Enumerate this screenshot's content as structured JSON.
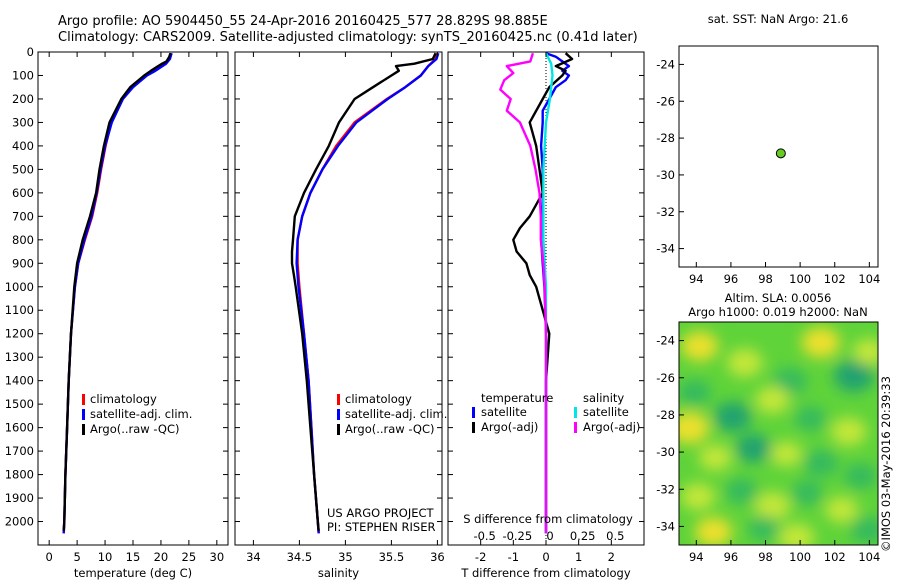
{
  "header": {
    "line1": "Argo profile: AO 5904450_55 24-Apr-2016 20160425_577 28.829S 98.885E",
    "line2": "Climatology: CARS2009. Satellite-adjusted climatology: synTS_20160425.nc (0.41d later)"
  },
  "side_stamp": "©IMOS 03-May-2016 20:39:33",
  "colors": {
    "climatology": "#ff0000",
    "satellite": "#0000ff",
    "argo": "#000000",
    "sal_satellite": "#00e5e5",
    "sal_argo": "#ff00ff",
    "marker": "#66cc22"
  },
  "chart_data": [
    {
      "id": "temperature",
      "type": "line",
      "xlabel": "temperature (deg C)",
      "ylabel": "",
      "xlim": [
        -2,
        32
      ],
      "ylim": [
        2100,
        0
      ],
      "xticks": [
        0,
        5,
        10,
        15,
        20,
        25,
        30
      ],
      "yticks": [
        0,
        100,
        200,
        300,
        400,
        500,
        600,
        700,
        800,
        900,
        1000,
        1100,
        1200,
        1300,
        1400,
        1500,
        1600,
        1700,
        1800,
        1900,
        2000
      ],
      "legend": [
        "climatology",
        "satellite-adj. clim.",
        "Argo(..raw -QC)"
      ],
      "series": [
        {
          "name": "climatology",
          "depth": [
            5,
            30,
            50,
            80,
            100,
            150,
            200,
            300,
            400,
            500,
            600,
            700,
            800,
            900,
            1000,
            1200,
            1400,
            1600,
            1800,
            2000,
            2050
          ],
          "values": [
            21.8,
            21.5,
            20.8,
            18.9,
            17.4,
            14.9,
            13.1,
            11.1,
            10.1,
            9.3,
            8.6,
            7.7,
            6.4,
            5.2,
            4.6,
            3.9,
            3.5,
            3.2,
            2.9,
            2.7,
            2.6
          ]
        },
        {
          "name": "satellite-adj. clim.",
          "depth": [
            5,
            30,
            50,
            80,
            100,
            150,
            200,
            300,
            400,
            500,
            600,
            700,
            800,
            900,
            1000,
            1200,
            1400,
            1600,
            1800,
            2000,
            2050
          ],
          "values": [
            21.9,
            21.6,
            20.9,
            19.0,
            17.5,
            15.0,
            13.2,
            11.2,
            10.0,
            9.2,
            8.5,
            7.6,
            6.3,
            5.2,
            4.6,
            3.9,
            3.5,
            3.2,
            2.9,
            2.7,
            2.6
          ]
        },
        {
          "name": "Argo(..raw -QC)",
          "depth": [
            5,
            20,
            40,
            50,
            60,
            80,
            100,
            150,
            200,
            300,
            400,
            500,
            600,
            700,
            800,
            900,
            1000,
            1200,
            1400,
            1600,
            1800,
            2000,
            2040
          ],
          "values": [
            21.7,
            21.5,
            21.0,
            20.2,
            19.5,
            18.2,
            17.0,
            14.5,
            12.9,
            10.8,
            9.8,
            9.0,
            8.4,
            7.3,
            6.0,
            5.0,
            4.5,
            3.9,
            3.5,
            3.2,
            2.9,
            2.7,
            2.6
          ]
        }
      ]
    },
    {
      "id": "salinity",
      "type": "line",
      "xlabel": "salinity",
      "ylabel": "",
      "xlim": [
        33.8,
        36.05
      ],
      "ylim": [
        2100,
        0
      ],
      "xticks": [
        34,
        34.5,
        35,
        35.5,
        36
      ],
      "xticklabels": [
        "34",
        "34.5",
        "35",
        "35.5",
        "36"
      ],
      "legend": [
        "climatology",
        "satellite-adj. clim.",
        "Argo(..raw -QC)"
      ],
      "annotation": [
        "US ARGO PROJECT",
        "PI: STEPHEN RISER"
      ],
      "series": [
        {
          "name": "climatology",
          "depth": [
            5,
            30,
            60,
            100,
            150,
            200,
            300,
            400,
            500,
            600,
            700,
            800,
            900,
            1000,
            1200,
            1400,
            1600,
            1800,
            2000,
            2050
          ],
          "values": [
            36.0,
            35.98,
            35.9,
            35.82,
            35.65,
            35.45,
            35.1,
            34.9,
            34.75,
            34.62,
            34.53,
            34.48,
            34.48,
            34.5,
            34.55,
            34.6,
            34.63,
            34.66,
            34.7,
            34.71
          ]
        },
        {
          "name": "satellite-adj. clim.",
          "depth": [
            5,
            30,
            60,
            100,
            150,
            200,
            300,
            400,
            500,
            600,
            700,
            800,
            900,
            1000,
            1200,
            1400,
            1600,
            1800,
            2000,
            2050
          ],
          "values": [
            36.01,
            35.99,
            35.9,
            35.82,
            35.65,
            35.46,
            35.12,
            34.92,
            34.75,
            34.62,
            34.53,
            34.48,
            34.47,
            34.49,
            34.55,
            34.6,
            34.63,
            34.66,
            34.7,
            34.71
          ]
        },
        {
          "name": "Argo(..raw -QC)",
          "depth": [
            5,
            30,
            50,
            60,
            80,
            100,
            150,
            200,
            300,
            400,
            500,
            600,
            700,
            800,
            850,
            900,
            950,
            1000,
            1200,
            1400,
            1600,
            1800,
            2000,
            2040
          ],
          "values": [
            35.98,
            35.95,
            35.75,
            35.55,
            35.58,
            35.5,
            35.3,
            35.1,
            34.93,
            34.82,
            34.68,
            34.55,
            34.45,
            34.43,
            34.42,
            34.42,
            34.44,
            34.46,
            34.53,
            34.58,
            34.62,
            34.66,
            34.7,
            34.71
          ]
        }
      ]
    },
    {
      "id": "differences",
      "type": "line",
      "xlabel": "T difference from climatology",
      "xlabel_top": "S difference from climatology",
      "xlim": [
        -3,
        3
      ],
      "ylim": [
        2100,
        0
      ],
      "xticks": [
        -2,
        -1,
        0,
        1,
        2
      ],
      "s_ticklabels": [
        "-0.5",
        "-0.25",
        "0",
        "0.25",
        "0.5"
      ],
      "legend": {
        "temperature_title": "temperature",
        "salinity_title": "salinity",
        "items": [
          "satellite",
          "Argo(-adj)",
          "satellite",
          "Argo(-adj)"
        ]
      },
      "series": [
        {
          "name": "temperature satellite",
          "depth": [
            5,
            20,
            40,
            60,
            80,
            100,
            120,
            150,
            200,
            250,
            300,
            400,
            500,
            600,
            700,
            800,
            900,
            1000,
            1200,
            1400,
            1600,
            1800,
            2000,
            2050
          ],
          "values": [
            0.0,
            0.3,
            0.5,
            0.7,
            0.5,
            0.7,
            0.6,
            0.3,
            0.1,
            -0.1,
            -0.1,
            -0.15,
            -0.1,
            -0.1,
            -0.1,
            -0.15,
            -0.1,
            -0.05,
            0.0,
            0.0,
            0.0,
            0.0,
            0.0,
            0.0
          ]
        },
        {
          "name": "temperature Argo(-adj)",
          "depth": [
            5,
            30,
            60,
            80,
            100,
            150,
            200,
            300,
            400,
            500,
            600,
            700,
            750,
            800,
            850,
            900,
            950,
            1000,
            1200,
            1400,
            1600,
            1800,
            2000,
            2050
          ],
          "values": [
            0.6,
            0.8,
            0.3,
            0.6,
            0.5,
            0.1,
            -0.1,
            -0.5,
            -0.3,
            -0.2,
            -0.1,
            -0.5,
            -0.8,
            -1.0,
            -0.9,
            -0.6,
            -0.5,
            -0.3,
            0.1,
            0.0,
            0.0,
            0.0,
            0.0,
            0.0
          ]
        },
        {
          "name": "salinity satellite",
          "depth": [
            5,
            50,
            100,
            200,
            300,
            400,
            500,
            600,
            700,
            800,
            900,
            1000,
            1200,
            1400,
            1600,
            1800,
            2000,
            2050
          ],
          "values": [
            0.0,
            0.04,
            0.05,
            0.03,
            0.0,
            -0.01,
            -0.02,
            -0.02,
            -0.02,
            -0.02,
            -0.01,
            0.0,
            0.0,
            0.0,
            0.0,
            0.0,
            0.0,
            0.0
          ]
        },
        {
          "name": "salinity Argo(-adj)",
          "depth": [
            5,
            40,
            60,
            90,
            120,
            160,
            200,
            250,
            300,
            400,
            500,
            600,
            700,
            800,
            900,
            1000,
            1200,
            1400,
            1600,
            1800,
            2000,
            2050
          ],
          "values": [
            -0.1,
            -0.12,
            -0.3,
            -0.25,
            -0.32,
            -0.35,
            -0.27,
            -0.3,
            -0.2,
            -0.12,
            -0.08,
            -0.05,
            -0.04,
            -0.04,
            -0.02,
            -0.01,
            0.0,
            0.0,
            0.0,
            0.0,
            0.0,
            0.0
          ]
        }
      ]
    },
    {
      "id": "position",
      "type": "scatter",
      "title": "sat. SST: NaN Argo: 21.6",
      "xlim": [
        93,
        104.5
      ],
      "ylim": [
        -35,
        -23
      ],
      "xticks": [
        94,
        96,
        98,
        100,
        102,
        104
      ],
      "yticks": [
        -24,
        -26,
        -28,
        -30,
        -32,
        -34
      ],
      "points": [
        {
          "x": 98.885,
          "y": -28.829
        }
      ]
    },
    {
      "id": "sla_map",
      "type": "heatmap",
      "title_line1": "Altim. SLA: 0.0056",
      "title_line2": "Argo h1000: 0.019 h2000: NaN",
      "xlim": [
        93,
        104.5
      ],
      "ylim": [
        -35,
        -23
      ],
      "xticks": [
        94,
        96,
        98,
        100,
        102,
        104
      ],
      "yticks": [
        -24,
        -26,
        -28,
        -30,
        -32,
        -34
      ],
      "base_color": "#5fd33a",
      "blobs": [
        {
          "x": 94.2,
          "y": -24.3,
          "v": 0.8
        },
        {
          "x": 96.8,
          "y": -25.2,
          "v": 0.7
        },
        {
          "x": 99.4,
          "y": -26.2,
          "v": -0.6
        },
        {
          "x": 101.2,
          "y": -24.1,
          "v": 0.9
        },
        {
          "x": 103.1,
          "y": -25.9,
          "v": -1.0
        },
        {
          "x": 104.0,
          "y": -24.6,
          "v": 0.5
        },
        {
          "x": 93.9,
          "y": -26.8,
          "v": -0.5
        },
        {
          "x": 96.1,
          "y": -28.1,
          "v": -0.8
        },
        {
          "x": 98.4,
          "y": -27.2,
          "v": 0.6
        },
        {
          "x": 100.6,
          "y": -28.2,
          "v": -0.4
        },
        {
          "x": 102.8,
          "y": -28.9,
          "v": 0.7
        },
        {
          "x": 93.6,
          "y": -28.7,
          "v": 1.0
        },
        {
          "x": 95.1,
          "y": -30.3,
          "v": 0.5
        },
        {
          "x": 97.3,
          "y": -29.8,
          "v": -0.7
        },
        {
          "x": 99.2,
          "y": -30.1,
          "v": 0.4
        },
        {
          "x": 101.2,
          "y": -30.6,
          "v": -0.6
        },
        {
          "x": 103.5,
          "y": -31.3,
          "v": -0.5
        },
        {
          "x": 94.1,
          "y": -32.4,
          "v": 0.6
        },
        {
          "x": 96.6,
          "y": -32.1,
          "v": -0.5
        },
        {
          "x": 98.4,
          "y": -32.9,
          "v": 0.7
        },
        {
          "x": 100.4,
          "y": -32.2,
          "v": -0.4
        },
        {
          "x": 102.4,
          "y": -33.1,
          "v": 0.5
        },
        {
          "x": 95.0,
          "y": -34.3,
          "v": 0.8
        },
        {
          "x": 99.8,
          "y": -34.6,
          "v": 0.7
        },
        {
          "x": 103.9,
          "y": -34.2,
          "v": -0.6
        },
        {
          "x": 97.9,
          "y": -34.1,
          "v": -0.4
        }
      ]
    }
  ]
}
